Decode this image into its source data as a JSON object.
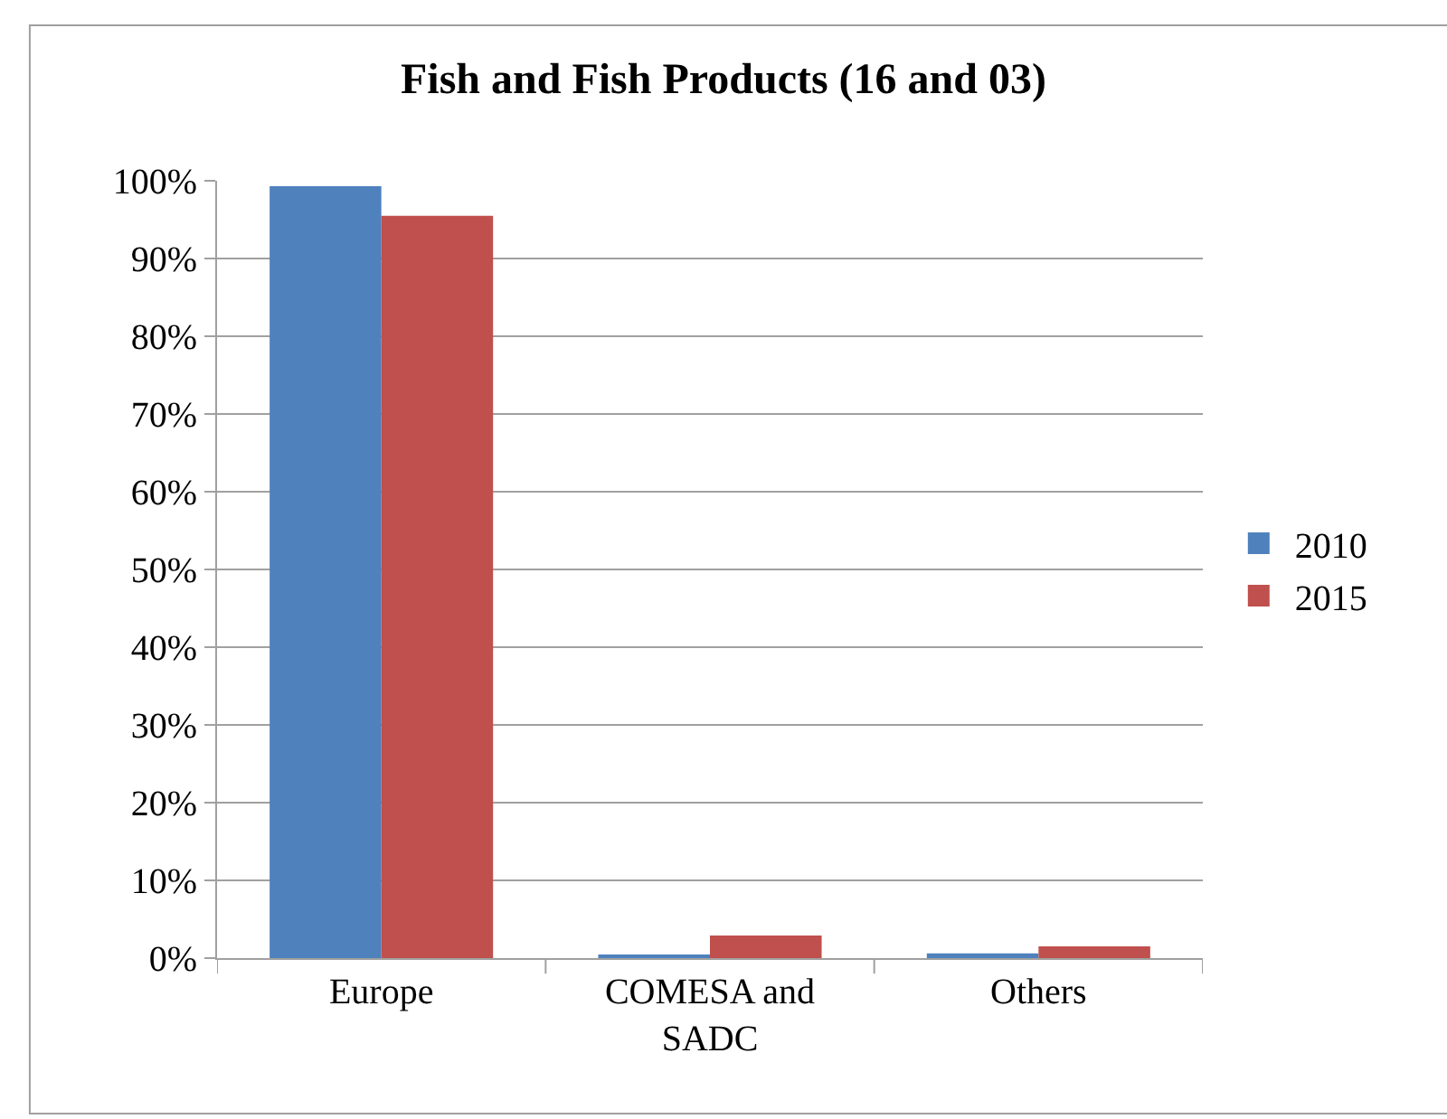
{
  "chart_data": {
    "type": "bar",
    "title": "Fish and Fish Products (16 and 03)",
    "categories": [
      "Europe",
      "COMESA and\nSADC",
      "Others"
    ],
    "series": [
      {
        "name": "2010",
        "color": "#4f81bd",
        "values": [
          99.3,
          0.3,
          0.6
        ]
      },
      {
        "name": "2015",
        "color": "#c0504d",
        "values": [
          95.5,
          2.9,
          1.5
        ]
      }
    ],
    "ylim": [
      0,
      100
    ],
    "yticks": [
      {
        "value": 0,
        "label": "0%"
      },
      {
        "value": 10,
        "label": "10%"
      },
      {
        "value": 20,
        "label": "20%"
      },
      {
        "value": 30,
        "label": "30%"
      },
      {
        "value": 40,
        "label": "40%"
      },
      {
        "value": 50,
        "label": "50%"
      },
      {
        "value": 60,
        "label": "60%"
      },
      {
        "value": 70,
        "label": "70%"
      },
      {
        "value": 80,
        "label": "80%"
      },
      {
        "value": 90,
        "label": "90%"
      },
      {
        "value": 100,
        "label": "100%"
      }
    ],
    "grid": "y",
    "legend": "right"
  }
}
